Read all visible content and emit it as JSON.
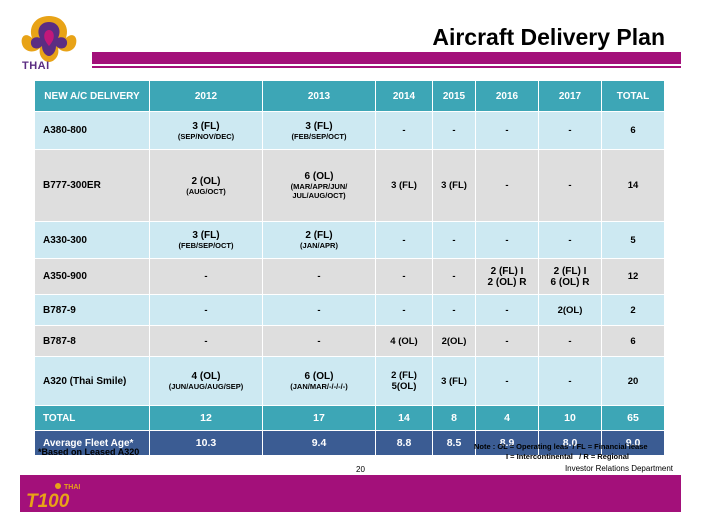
{
  "header": {
    "logo_text": "THAI",
    "title": "Aircraft Delivery Plan",
    "brand_color": "#a3107a"
  },
  "table": {
    "columns": [
      "NEW A/C DELIVERY",
      "2012",
      "2013",
      "2014",
      "2015",
      "2016",
      "2017",
      "TOTAL"
    ],
    "rows": [
      {
        "name": "A380-800",
        "cells": [
          {
            "main": "3 (FL)",
            "sub": "(SEP/NOV/DEC)"
          },
          {
            "main": "3 (FL)",
            "sub": "(FEB/SEP/OCT)"
          },
          {
            "main": "-"
          },
          {
            "main": "-"
          },
          {
            "main": "-"
          },
          {
            "main": "-"
          },
          {
            "main": "6"
          }
        ]
      },
      {
        "name": "B777-300ER",
        "cells": [
          {
            "main": "2 (OL)",
            "sub": "(AUG/OCT)"
          },
          {
            "main": "6 (OL)",
            "sub": "(MAR/APR/JUN/ JUL/AUG/OCT)"
          },
          {
            "main": "3 (FL)"
          },
          {
            "main": "3 (FL)"
          },
          {
            "main": "-"
          },
          {
            "main": "-"
          },
          {
            "main": "14"
          }
        ]
      },
      {
        "name": "A330-300",
        "cells": [
          {
            "main": "3 (FL)",
            "sub": "(FEB/SEP/OCT)"
          },
          {
            "main": "2 (FL)",
            "sub": "(JAN/APR)"
          },
          {
            "main": "-"
          },
          {
            "main": "-"
          },
          {
            "main": "-"
          },
          {
            "main": "-"
          },
          {
            "main": "5"
          }
        ]
      },
      {
        "name": "A350-900",
        "cells": [
          {
            "main": "-"
          },
          {
            "main": "-"
          },
          {
            "main": "-"
          },
          {
            "main": "-"
          },
          {
            "main": "2 (FL) I",
            "main2": "2 (OL) R"
          },
          {
            "main": "2 (FL) I",
            "main2": "6 (OL) R"
          },
          {
            "main": "12"
          }
        ]
      },
      {
        "name": "B787-9",
        "cells": [
          {
            "main": "-"
          },
          {
            "main": "-"
          },
          {
            "main": "-"
          },
          {
            "main": "-"
          },
          {
            "main": "-"
          },
          {
            "main": "2(OL)"
          },
          {
            "main": "2"
          }
        ]
      },
      {
        "name": "B787-8",
        "cells": [
          {
            "main": "-"
          },
          {
            "main": "-"
          },
          {
            "main": "4 (OL)"
          },
          {
            "main": "2(OL)"
          },
          {
            "main": "-"
          },
          {
            "main": "-"
          },
          {
            "main": "6"
          }
        ]
      },
      {
        "name": "A320 (Thai Smile)",
        "cells": [
          {
            "main": "4 (OL)",
            "sub": "(JUN/AUG/AUG/SEP)"
          },
          {
            "main": "6 (OL)",
            "sub": "(JAN/MAR/-/-/-/-)"
          },
          {
            "main": "2 (FL) 5(OL)"
          },
          {
            "main": "3 (FL)"
          },
          {
            "main": "-"
          },
          {
            "main": "-"
          },
          {
            "main": "20"
          }
        ]
      }
    ],
    "total_row": {
      "name": "TOTAL",
      "values": [
        "12",
        "17",
        "14",
        "8",
        "4",
        "10",
        "65"
      ]
    },
    "age_row": {
      "name": "Average Fleet Age*",
      "values": [
        "10.3",
        "9.4",
        "8.8",
        "8.5",
        "8.9",
        "8.0",
        "9.0"
      ]
    }
  },
  "footnote": "*Based on Leased A320",
  "note": {
    "line1_a": "Note : OL = Operating leas",
    "line1_b": "/    FL = Financial lease",
    "line2_a": "I = Intercontinental",
    "line2_b": "/    R =  Regional"
  },
  "page_number": "20",
  "department": "Investor Relations Department",
  "footer_logo": {
    "small": "THAI",
    "big": "T100"
  }
}
